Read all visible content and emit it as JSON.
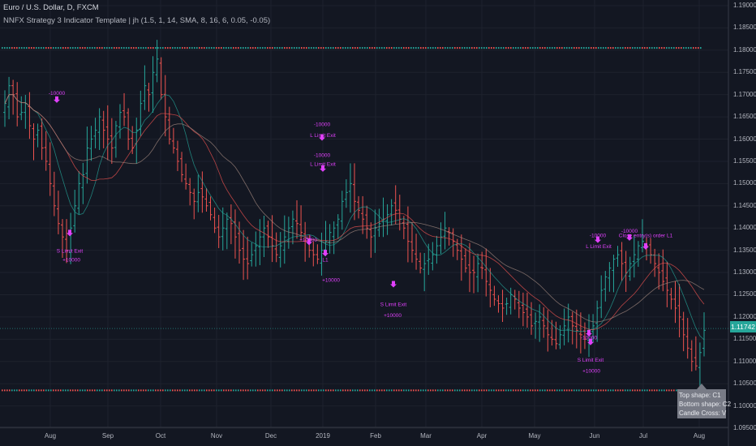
{
  "header": {
    "symbol": "Euro / U.S. Dollar, D, FXCM",
    "indicator": "NNFX Strategy 3 Indicator Template | jh (1.5, 1, 14, SMA, 8, 16, 6, 0.05, -0.05)"
  },
  "price_axis": {
    "ticks": [
      "1.19000",
      "1.18500",
      "1.18000",
      "1.17500",
      "1.17000",
      "1.16500",
      "1.16000",
      "1.15500",
      "1.15000",
      "1.14500",
      "1.14000",
      "1.13500",
      "1.13000",
      "1.12500",
      "1.12000",
      "1.11500",
      "1.11000",
      "1.10500",
      "1.10000",
      "1.09500"
    ],
    "current_price": "1.11742"
  },
  "time_axis": {
    "labels": [
      "Aug",
      "Sep",
      "Oct",
      "Nov",
      "Dec",
      "2019",
      "Feb",
      "Mar",
      "Apr",
      "May",
      "Jun",
      "Jul",
      "Aug"
    ]
  },
  "tooltip": {
    "line1": "Top shape: C1",
    "line2": "Bottom shape: C2",
    "line3": "Candle Cross: V"
  },
  "chart_data": {
    "type": "candlestick",
    "title": "Euro / U.S. Dollar, D, FXCM",
    "y_range": [
      1.095,
      1.19
    ],
    "closes": [
      1.168,
      1.172,
      1.17,
      1.165,
      1.166,
      1.168,
      1.163,
      1.16,
      1.162,
      1.158,
      1.155,
      1.15,
      1.145,
      1.141,
      1.138,
      1.135,
      1.14,
      1.145,
      1.15,
      1.152,
      1.158,
      1.16,
      1.162,
      1.165,
      1.162,
      1.16,
      1.158,
      1.163,
      1.166,
      1.165,
      1.16,
      1.158,
      1.162,
      1.168,
      1.172,
      1.17,
      1.175,
      1.178,
      1.17,
      1.165,
      1.16,
      1.158,
      1.155,
      1.152,
      1.15,
      1.148,
      1.146,
      1.148,
      1.147,
      1.145,
      1.143,
      1.14,
      1.138,
      1.14,
      1.142,
      1.141,
      1.138,
      1.135,
      1.133,
      1.132,
      1.134,
      1.136,
      1.138,
      1.14,
      1.138,
      1.136,
      1.134,
      1.136,
      1.138,
      1.14,
      1.142,
      1.141,
      1.139,
      1.137,
      1.135,
      1.134,
      1.133,
      1.135,
      1.137,
      1.139,
      1.14,
      1.142,
      1.146,
      1.148,
      1.15,
      1.146,
      1.144,
      1.142,
      1.14,
      1.138,
      1.14,
      1.141,
      1.142,
      1.143,
      1.145,
      1.144,
      1.142,
      1.14,
      1.137,
      1.135,
      1.133,
      1.131,
      1.132,
      1.133,
      1.134,
      1.136,
      1.138,
      1.14,
      1.139,
      1.137,
      1.135,
      1.133,
      1.131,
      1.13,
      1.13,
      1.132,
      1.131,
      1.128,
      1.126,
      1.124,
      1.123,
      1.122,
      1.123,
      1.125,
      1.124,
      1.122,
      1.121,
      1.12,
      1.118,
      1.119,
      1.12,
      1.118,
      1.116,
      1.115,
      1.114,
      1.116,
      1.118,
      1.12,
      1.118,
      1.117,
      1.116,
      1.115,
      1.116,
      1.118,
      1.122,
      1.126,
      1.129,
      1.131,
      1.133,
      1.134,
      1.132,
      1.13,
      1.132,
      1.134,
      1.136,
      1.137,
      1.136,
      1.134,
      1.132,
      1.13,
      1.128,
      1.126,
      1.124,
      1.122,
      1.12,
      1.116,
      1.113,
      1.11,
      1.109,
      1.112,
      1.117
    ],
    "support_level": 1.1035,
    "resistance_level": 1.1805,
    "trade_annotations": [
      {
        "text": "-10000",
        "price": 1.1705
      },
      {
        "text": "S Limit Exit",
        "price": 1.135
      },
      {
        "text": "+10000",
        "price": 1.133
      },
      {
        "text": "-10000",
        "price": 1.1635
      },
      {
        "text": "L Limit Exit",
        "price": 1.161
      },
      {
        "text": "-10000",
        "price": 1.1565
      },
      {
        "text": "L Limit Exit",
        "price": 1.1545
      },
      {
        "text": "L1",
        "price": 1.138
      },
      {
        "text": "+10000",
        "price": 1.1375
      },
      {
        "text": "L1",
        "price": 1.133
      },
      {
        "text": "+10000",
        "price": 1.1285
      },
      {
        "text": "S Limit Exit",
        "price": 1.123
      },
      {
        "text": "+10000",
        "price": 1.1205
      },
      {
        "text": "-10000",
        "price": 1.1385
      },
      {
        "text": "L Limit Exit",
        "price": 1.136
      },
      {
        "text": "-10000",
        "price": 1.1395
      },
      {
        "text": "Close entry(s) order L1",
        "price": 1.1385
      },
      {
        "text": "-10000",
        "price": 1.1155
      },
      {
        "text": "S Limit Exit",
        "price": 1.1105
      },
      {
        "text": "+10000",
        "price": 1.108
      }
    ]
  }
}
